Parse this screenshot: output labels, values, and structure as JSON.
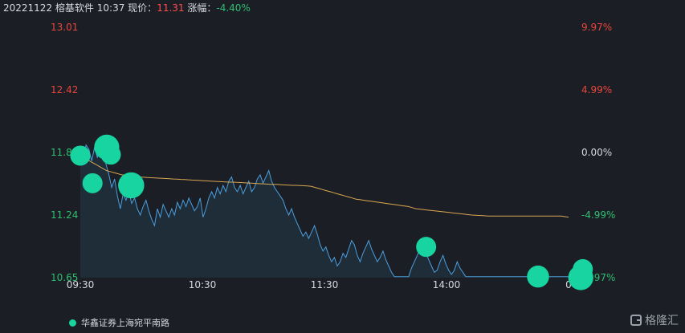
{
  "header": {
    "date": "20221122",
    "stock_name": "榕基软件",
    "time": "10:37",
    "price_label": "现价：",
    "price": "11.31",
    "change_label": "涨幅：",
    "change_pct": "-4.40%"
  },
  "legend": {
    "label": "华鑫证券上海宛平南路"
  },
  "logo": {
    "text": "格隆汇"
  },
  "colors": {
    "background": "#1b1e24",
    "up": "#e8463c",
    "down": "#2fbf71",
    "price_line": "#4a9fe0",
    "price_fill": "#1f2d39",
    "avg_line": "#d9a752",
    "marker": "#18d4a0",
    "neutral_text": "#d6d9de"
  },
  "chart_data": {
    "type": "line",
    "y_ticks_left": [
      "13.01",
      "12.42",
      "11.8",
      "11.24",
      "10.65"
    ],
    "y_ticks_right": [
      "9.97%",
      "4.99%",
      "0.00%",
      "-4.99%",
      "-9.97%"
    ],
    "x_ticks": [
      "09:30",
      "10:30",
      "11:30",
      "14:00",
      "0"
    ],
    "ylim": [
      10.65,
      13.01
    ],
    "prev_close": 11.83,
    "x_domain": [
      0,
      240
    ],
    "x_tick_positions": [
      0,
      60,
      120,
      180,
      240
    ],
    "series": [
      {
        "values": [
          11.82,
          11.72,
          11.9,
          11.86,
          11.75,
          11.88,
          11.78,
          11.92,
          11.8,
          11.72,
          11.62,
          11.5,
          11.58,
          11.42,
          11.3,
          11.44,
          11.38,
          11.46,
          11.35,
          11.4,
          11.3,
          11.24,
          11.32,
          11.38,
          11.28,
          11.2,
          11.14,
          11.3,
          11.22,
          11.34,
          11.28,
          11.22,
          11.3,
          11.24,
          11.36,
          11.3,
          11.38,
          11.32,
          11.4,
          11.34,
          11.28,
          11.32,
          11.4,
          11.22,
          11.3,
          11.4,
          11.46,
          11.4,
          11.5,
          11.44,
          11.52,
          11.46,
          11.56,
          11.6,
          11.5,
          11.46,
          11.52,
          11.44,
          11.5,
          11.56,
          11.46,
          11.5,
          11.58,
          11.62,
          11.54,
          11.6,
          11.66,
          11.56,
          11.5,
          11.46,
          11.42,
          11.38,
          11.3,
          11.24,
          11.3,
          11.22,
          11.16,
          11.1,
          11.04,
          11.08,
          11.02,
          11.08,
          11.14,
          11.06,
          10.96,
          10.9,
          10.94,
          10.86,
          10.8,
          10.84,
          10.76,
          10.8,
          10.88,
          10.84,
          10.92,
          11.0,
          10.96,
          10.86,
          10.8,
          10.88,
          10.94,
          11.0,
          10.92,
          10.86,
          10.8,
          10.84,
          10.9,
          10.82,
          10.76,
          10.7,
          10.66,
          10.66,
          10.66,
          10.66,
          10.66,
          10.66,
          10.74,
          10.8,
          10.86,
          10.92,
          10.96,
          10.88,
          10.82,
          10.76,
          10.7,
          10.72,
          10.8,
          10.86,
          10.78,
          10.72,
          10.68,
          10.72,
          10.8,
          10.74,
          10.7,
          10.66,
          10.66,
          10.66,
          10.66,
          10.66,
          10.66,
          10.66,
          10.66,
          10.66,
          10.66,
          10.66,
          10.66,
          10.66,
          10.66,
          10.66,
          10.66,
          10.66,
          10.66,
          10.66,
          10.66,
          10.66,
          10.66,
          10.66,
          10.66,
          10.66,
          10.66,
          10.66,
          10.66,
          10.66,
          10.66,
          10.66,
          10.66,
          10.66,
          10.66,
          10.66,
          10.66,
          10.66
        ]
      },
      {
        "values": [
          11.82,
          11.78,
          11.76,
          11.74,
          11.72,
          11.7,
          11.68,
          11.66,
          11.65,
          11.64,
          11.63,
          11.62,
          11.615,
          11.61,
          11.605,
          11.6,
          11.598,
          11.596,
          11.594,
          11.592,
          11.59,
          11.588,
          11.586,
          11.584,
          11.582,
          11.58,
          11.578,
          11.576,
          11.574,
          11.572,
          11.57,
          11.568,
          11.566,
          11.564,
          11.562,
          11.56,
          11.558,
          11.556,
          11.554,
          11.552,
          11.55,
          11.55,
          11.548,
          11.546,
          11.544,
          11.542,
          11.54,
          11.538,
          11.536,
          11.534,
          11.532,
          11.53,
          11.53,
          11.528,
          11.526,
          11.524,
          11.522,
          11.52,
          11.52,
          11.518,
          11.516,
          11.514,
          11.51,
          11.5,
          11.49,
          11.48,
          11.47,
          11.46,
          11.45,
          11.44,
          11.43,
          11.42,
          11.41,
          11.4,
          11.39,
          11.385,
          11.38,
          11.375,
          11.37,
          11.365,
          11.36,
          11.355,
          11.35,
          11.345,
          11.34,
          11.335,
          11.33,
          11.325,
          11.32,
          11.31,
          11.3,
          11.296,
          11.292,
          11.288,
          11.284,
          11.28,
          11.276,
          11.272,
          11.268,
          11.264,
          11.26,
          11.256,
          11.252,
          11.248,
          11.244,
          11.24,
          11.238,
          11.236,
          11.234,
          11.232,
          11.23,
          11.23,
          11.23,
          11.23,
          11.23,
          11.23,
          11.23,
          11.23,
          11.23,
          11.23,
          11.23,
          11.23,
          11.23,
          11.23,
          11.23,
          11.23,
          11.23,
          11.23,
          11.23,
          11.23,
          11.225,
          11.22
        ]
      }
    ],
    "markers": [
      {
        "x": 0,
        "y": 11.8,
        "size": 1
      },
      {
        "x": 6,
        "y": 11.54,
        "size": 1
      },
      {
        "x": 13,
        "y": 11.88,
        "size": 1.25
      },
      {
        "x": 15,
        "y": 11.81,
        "size": 1
      },
      {
        "x": 25,
        "y": 11.52,
        "size": 1.3
      },
      {
        "x": 170,
        "y": 10.94,
        "size": 1
      },
      {
        "x": 225,
        "y": 10.66,
        "size": 1.1
      },
      {
        "x": 247,
        "y": 10.73,
        "size": 1
      },
      {
        "x": 246,
        "y": 10.65,
        "size": 1.25
      }
    ]
  }
}
